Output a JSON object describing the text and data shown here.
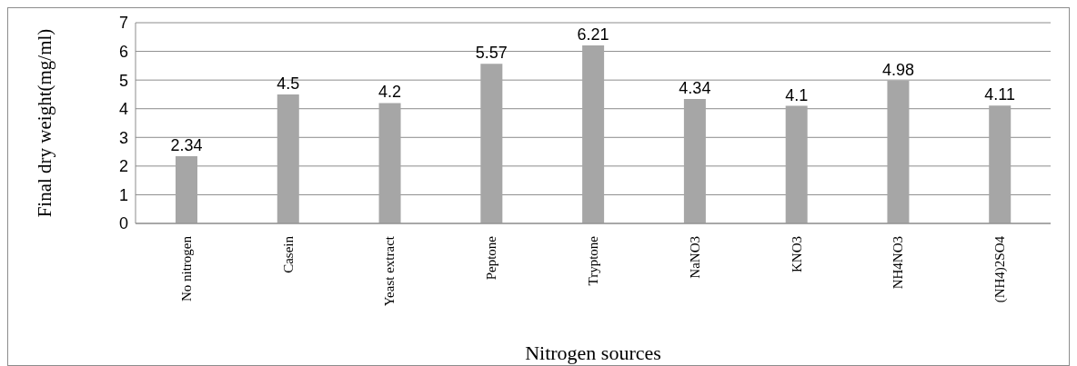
{
  "chart_data": {
    "type": "bar",
    "xlabel": "Nitrogen sources",
    "ylabel": "Final dry weight(mg/ml)",
    "categories": [
      "No nitrogen",
      "Casein",
      "Yeast extract",
      "Peptone",
      "Tryptone",
      "NaNO3",
      "KNO3",
      "NH4NO3",
      "(NH4)2SO4"
    ],
    "values": [
      2.34,
      4.5,
      4.2,
      5.57,
      6.21,
      4.34,
      4.1,
      4.98,
      4.11
    ],
    "color": "#a6a6a6",
    "ylim": [
      0,
      7
    ],
    "yticks": [
      0,
      1,
      2,
      3,
      4,
      5,
      6,
      7
    ],
    "grid": "y",
    "data_labels": true,
    "legend": false
  }
}
